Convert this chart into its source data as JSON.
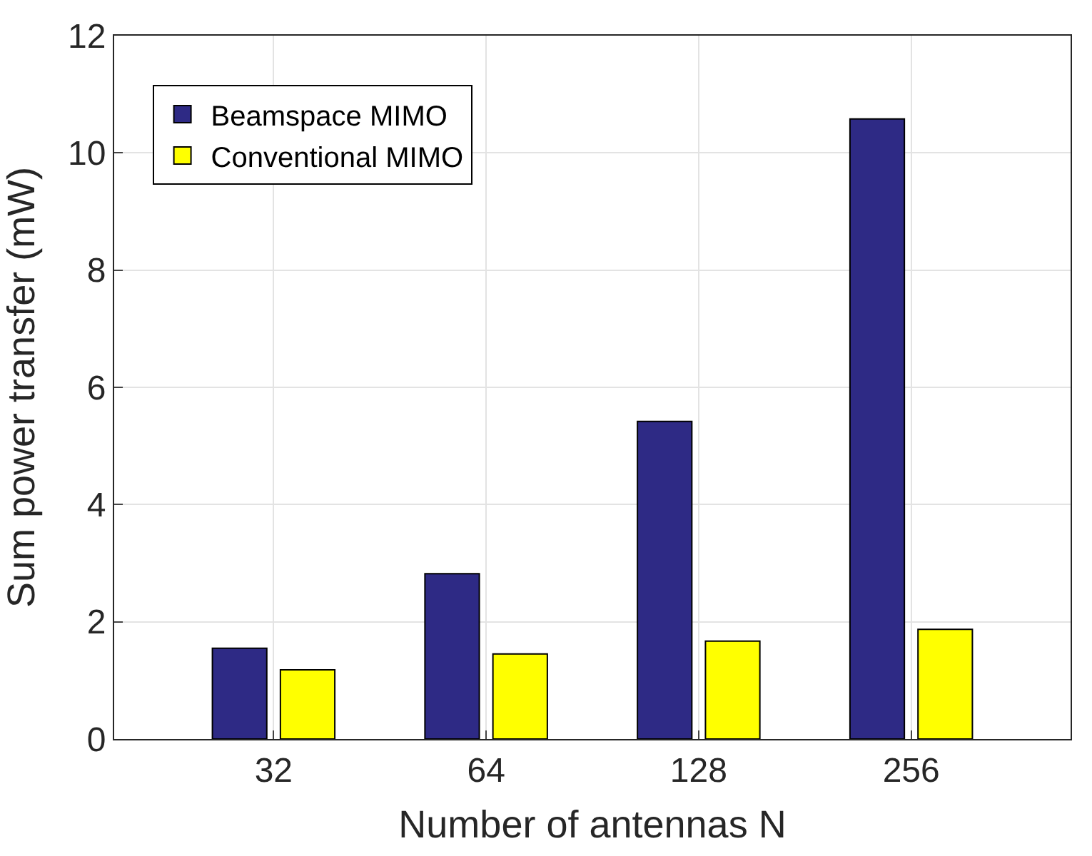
{
  "chart_data": {
    "type": "bar",
    "xlabel": "Number of antennas N",
    "ylabel": "Sum power transfer (mW)",
    "categories": [
      "32",
      "64",
      "128",
      "256"
    ],
    "series": [
      {
        "name": "Beamspace MIMO",
        "color": "#2e2a85",
        "values": [
          1.55,
          2.82,
          5.42,
          10.58
        ]
      },
      {
        "name": "Conventional MIMO",
        "color": "#ffff00",
        "values": [
          1.18,
          1.45,
          1.67,
          1.87
        ]
      }
    ],
    "ylim": [
      0,
      12
    ],
    "yticks": [
      0,
      2,
      4,
      6,
      8,
      10,
      12
    ],
    "grid": true,
    "legend": "top left"
  }
}
